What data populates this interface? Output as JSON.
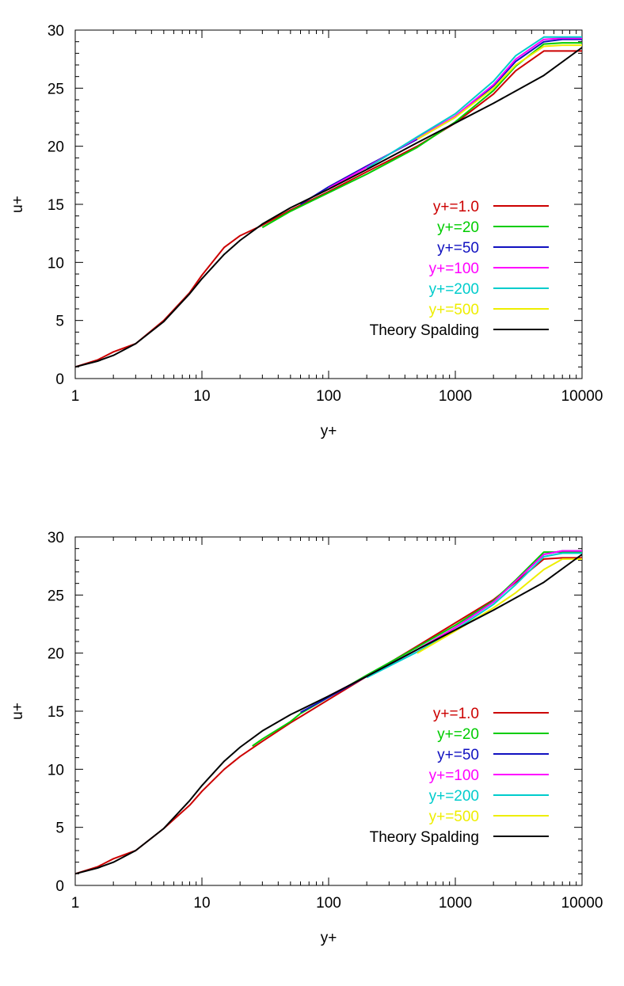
{
  "chart_data": [
    {
      "type": "line",
      "xlabel": "y+",
      "ylabel": "u+",
      "xscale": "log",
      "xlim": [
        1,
        10000
      ],
      "ylim": [
        0,
        30
      ],
      "xticks": [
        "1",
        "10",
        "100",
        "1000",
        "10000"
      ],
      "yticks": [
        "0",
        "5",
        "10",
        "15",
        "20",
        "25",
        "30"
      ],
      "grid": false,
      "legend_position": "right-middle",
      "series": [
        {
          "name": "y+=1.0",
          "color": "#cc0000",
          "x": [
            1,
            1.5,
            2,
            3,
            5,
            8,
            10,
            15,
            20,
            30,
            50,
            100,
            200,
            500,
            1000,
            2000,
            3000,
            5000,
            7000,
            10000
          ],
          "y": [
            1.0,
            1.6,
            2.3,
            3.0,
            5.0,
            7.4,
            8.9,
            11.3,
            12.3,
            13.2,
            14.5,
            16.1,
            17.8,
            20.0,
            22.0,
            24.5,
            26.5,
            28.2,
            28.2,
            28.2
          ]
        },
        {
          "name": "y+=20",
          "color": "#00cc00",
          "x": [
            30,
            50,
            100,
            200,
            500,
            1000,
            2000,
            3000,
            5000,
            7000,
            10000
          ],
          "y": [
            13.0,
            14.4,
            16.0,
            17.6,
            19.9,
            22.1,
            24.8,
            26.9,
            28.8,
            28.9,
            28.9
          ]
        },
        {
          "name": "y+=50",
          "color": "#1010c0",
          "x": [
            60,
            100,
            200,
            500,
            1000,
            2000,
            3000,
            5000,
            7000,
            10000
          ],
          "y": [
            15.0,
            16.5,
            18.3,
            20.6,
            22.5,
            25.2,
            27.3,
            29.0,
            29.2,
            29.2
          ]
        },
        {
          "name": "y+=100",
          "color": "#ff00ff",
          "x": [
            100,
            200,
            500,
            1000,
            2000,
            3000,
            5000,
            7000,
            10000
          ],
          "y": [
            16.4,
            18.2,
            20.7,
            22.6,
            25.3,
            27.5,
            29.2,
            29.3,
            29.3
          ]
        },
        {
          "name": "y+=200",
          "color": "#00cccc",
          "x": [
            200,
            500,
            1000,
            2000,
            3000,
            5000,
            7000,
            10000
          ],
          "y": [
            18.1,
            20.8,
            22.8,
            25.6,
            27.8,
            29.4,
            29.4,
            29.4
          ]
        },
        {
          "name": "y+=500",
          "color": "#eeee00",
          "x": [
            500,
            1000,
            2000,
            3000,
            5000,
            7000,
            10000
          ],
          "y": [
            20.6,
            22.5,
            25.0,
            27.0,
            28.6,
            28.7,
            28.7
          ]
        },
        {
          "name": "Theory Spalding",
          "color": "#000000",
          "x": [
            1,
            1.5,
            2,
            3,
            5,
            8,
            10,
            15,
            20,
            30,
            50,
            100,
            200,
            500,
            1000,
            2000,
            5000,
            10000
          ],
          "y": [
            1.0,
            1.5,
            2.0,
            3.0,
            4.9,
            7.3,
            8.6,
            10.7,
            11.9,
            13.3,
            14.7,
            16.3,
            18.0,
            20.3,
            22.0,
            23.7,
            26.1,
            28.5
          ]
        }
      ]
    },
    {
      "type": "line",
      "xlabel": "y+",
      "ylabel": "u+",
      "xscale": "log",
      "xlim": [
        1,
        10000
      ],
      "ylim": [
        0,
        30
      ],
      "xticks": [
        "1",
        "10",
        "100",
        "1000",
        "10000"
      ],
      "yticks": [
        "0",
        "5",
        "10",
        "15",
        "20",
        "25",
        "30"
      ],
      "grid": false,
      "legend_position": "right-middle",
      "series": [
        {
          "name": "y+=1.0",
          "color": "#cc0000",
          "x": [
            1,
            1.5,
            2,
            3,
            5,
            8,
            10,
            15,
            20,
            30,
            50,
            100,
            200,
            500,
            1000,
            2000,
            3000,
            5000,
            7000,
            10000
          ],
          "y": [
            1.0,
            1.6,
            2.3,
            3.0,
            4.9,
            6.9,
            8.1,
            10.0,
            11.1,
            12.4,
            14.0,
            16.0,
            18.0,
            20.6,
            22.6,
            24.6,
            26.1,
            28.1,
            28.2,
            28.2
          ]
        },
        {
          "name": "y+=20",
          "color": "#00cc00",
          "x": [
            25,
            30,
            50,
            60,
            100,
            200,
            500,
            1000,
            2000,
            3000,
            5000,
            7000,
            10000
          ],
          "y": [
            12.0,
            12.6,
            14.1,
            14.8,
            16.2,
            18.1,
            20.5,
            22.4,
            24.5,
            26.3,
            28.7,
            28.7,
            28.7
          ]
        },
        {
          "name": "y+=50",
          "color": "#1010c0",
          "x": [
            60,
            100,
            200,
            500,
            1000,
            2000,
            3000,
            5000,
            7000,
            10000
          ],
          "y": [
            14.9,
            16.2,
            18.0,
            20.3,
            22.2,
            24.4,
            26.2,
            28.5,
            28.8,
            28.8
          ]
        },
        {
          "name": "y+=100",
          "color": "#ff00ff",
          "x": [
            100,
            200,
            500,
            1000,
            2000,
            3000,
            5000,
            7000,
            10000
          ],
          "y": [
            16.3,
            18.0,
            20.3,
            22.2,
            24.4,
            26.2,
            28.5,
            28.8,
            28.8
          ]
        },
        {
          "name": "y+=200",
          "color": "#00cccc",
          "x": [
            200,
            500,
            1000,
            2000,
            3000,
            5000,
            7000,
            10000
          ],
          "y": [
            17.9,
            20.1,
            22.0,
            24.2,
            25.9,
            28.3,
            28.6,
            28.6
          ]
        },
        {
          "name": "y+=500",
          "color": "#eeee00",
          "x": [
            500,
            1000,
            2000,
            3000,
            5000,
            7000,
            10000
          ],
          "y": [
            20.0,
            21.9,
            23.9,
            25.2,
            27.2,
            28.1,
            28.1
          ]
        },
        {
          "name": "Theory Spalding",
          "color": "#000000",
          "x": [
            1,
            1.5,
            2,
            3,
            5,
            8,
            10,
            15,
            20,
            30,
            50,
            100,
            200,
            500,
            1000,
            2000,
            5000,
            10000
          ],
          "y": [
            1.0,
            1.5,
            2.0,
            3.0,
            4.9,
            7.3,
            8.6,
            10.7,
            11.9,
            13.3,
            14.7,
            16.3,
            18.0,
            20.3,
            22.0,
            23.7,
            26.1,
            28.5
          ]
        }
      ]
    }
  ]
}
